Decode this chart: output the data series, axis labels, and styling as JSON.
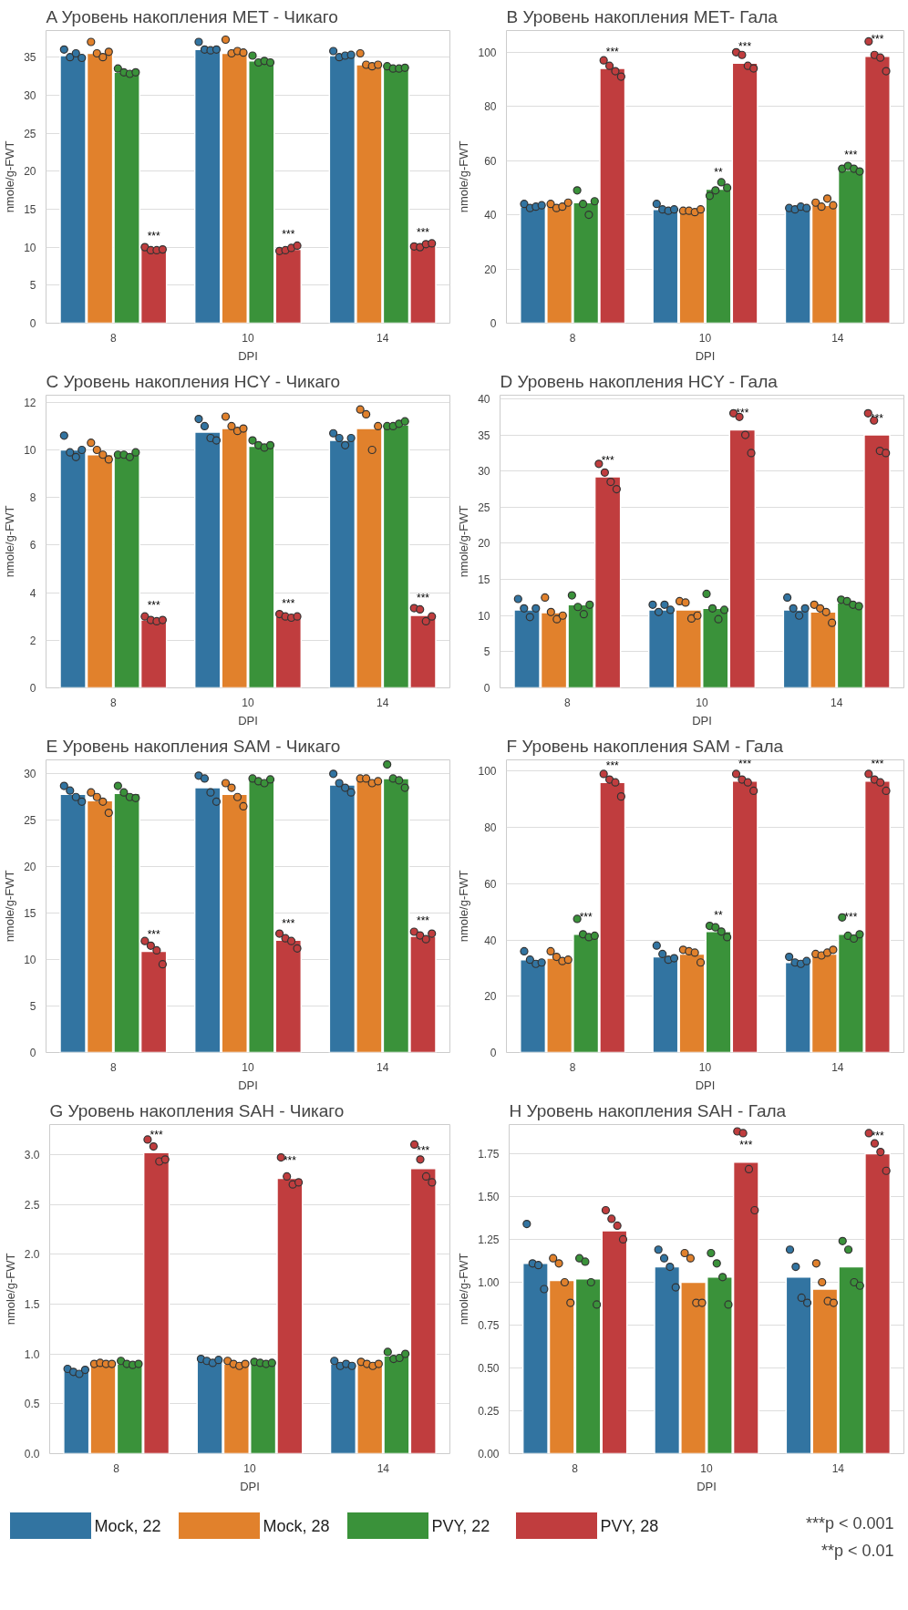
{
  "chart_data": [
    {
      "type": "bar",
      "title": "A Уровень накопления MET - Чикаго",
      "xlabel": "DPI",
      "ylabel": "nmole/g-FWT",
      "categories": [
        "8",
        "10",
        "14"
      ],
      "ylim": [
        0,
        38.5
      ],
      "yticks": [
        0,
        5,
        10,
        15,
        20,
        25,
        30,
        35
      ],
      "grid": "y",
      "marker": "circle",
      "series": [
        {
          "color": "#3274a1",
          "values": [
            35.2,
            36.0,
            35.2
          ]
        },
        {
          "color": "#e1812c",
          "values": [
            35.5,
            35.5,
            34.0
          ]
        },
        {
          "color": "#3a923a",
          "values": [
            33.0,
            34.5,
            33.6
          ]
        },
        {
          "color": "#c03d3e",
          "values": [
            9.8,
            9.7,
            10.3
          ],
          "value_labels": [
            "***",
            "***",
            "***"
          ]
        },
        {
          "type": "scatter",
          "color": "#3274a1",
          "x": [
            "8",
            "8",
            "8",
            "8",
            "10",
            "10",
            "10",
            "10",
            "14",
            "14",
            "14",
            "14"
          ],
          "values": [
            36.0,
            35.0,
            35.5,
            34.9,
            37.0,
            36.0,
            35.9,
            36.0,
            35.8,
            35.0,
            35.2,
            35.3
          ]
        },
        {
          "type": "scatter",
          "color": "#e1812c",
          "x": [
            "8",
            "8",
            "8",
            "8",
            "10",
            "10",
            "10",
            "10",
            "14",
            "14",
            "14",
            "14"
          ],
          "values": [
            37.0,
            35.5,
            35.0,
            35.7,
            37.3,
            35.5,
            35.8,
            35.6,
            35.5,
            34.0,
            33.8,
            34.0
          ]
        },
        {
          "type": "scatter",
          "color": "#3a923a",
          "x": [
            "8",
            "8",
            "8",
            "8",
            "10",
            "10",
            "10",
            "10",
            "14",
            "14",
            "14",
            "14"
          ],
          "values": [
            33.5,
            33.0,
            32.8,
            33.0,
            35.2,
            34.3,
            34.5,
            34.3,
            33.8,
            33.5,
            33.5,
            33.6
          ]
        },
        {
          "type": "scatter",
          "color": "#c03d3e",
          "x": [
            "8",
            "8",
            "8",
            "8",
            "10",
            "10",
            "10",
            "10",
            "14",
            "14",
            "14",
            "14"
          ],
          "values": [
            10.0,
            9.6,
            9.6,
            9.7,
            9.5,
            9.6,
            9.9,
            10.2,
            10.1,
            10.0,
            10.4,
            10.5
          ]
        }
      ]
    },
    {
      "type": "bar",
      "title": "B Уровень накопления MET- Гала",
      "xlabel": "DPI",
      "ylabel": "nmole/g-FWT",
      "categories": [
        "8",
        "10",
        "14"
      ],
      "ylim": [
        0,
        108
      ],
      "yticks": [
        0,
        20,
        40,
        60,
        80,
        100
      ],
      "grid": "y",
      "marker": "circle",
      "series": [
        {
          "color": "#3274a1",
          "values": [
            43,
            42,
            42.5
          ]
        },
        {
          "color": "#e1812c",
          "values": [
            43.5,
            41.5,
            43.5
          ]
        },
        {
          "color": "#3a923a",
          "values": [
            44.5,
            49.5,
            56.5
          ],
          "value_labels": [
            null,
            "**",
            "***"
          ]
        },
        {
          "color": "#c03d3e",
          "values": [
            94,
            96,
            98.5
          ],
          "value_labels": [
            "***",
            "***",
            "***"
          ]
        },
        {
          "type": "scatter",
          "color": "#3274a1",
          "x": [
            "8",
            "8",
            "8",
            "8",
            "10",
            "10",
            "10",
            "10",
            "14",
            "14",
            "14",
            "14"
          ],
          "values": [
            44,
            42.5,
            43,
            43.5,
            44,
            42,
            41.5,
            42,
            42.5,
            42,
            43,
            42.5
          ]
        },
        {
          "type": "scatter",
          "color": "#e1812c",
          "x": [
            "8",
            "8",
            "8",
            "8",
            "10",
            "10",
            "10",
            "10",
            "14",
            "14",
            "14",
            "14"
          ],
          "values": [
            44,
            42.5,
            43,
            44.5,
            41.5,
            41.5,
            41,
            42,
            44.5,
            43,
            46,
            43.5
          ]
        },
        {
          "type": "scatter",
          "color": "#3a923a",
          "x": [
            "8",
            "8",
            "8",
            "8",
            "10",
            "10",
            "10",
            "10",
            "14",
            "14",
            "14",
            "14"
          ],
          "values": [
            49,
            44,
            40,
            45,
            47,
            49,
            52,
            50,
            57,
            58,
            57,
            56
          ]
        },
        {
          "type": "scatter",
          "color": "#c03d3e",
          "x": [
            "8",
            "8",
            "8",
            "8",
            "10",
            "10",
            "10",
            "10",
            "14",
            "14",
            "14",
            "14"
          ],
          "values": [
            97,
            95,
            93,
            91,
            100,
            99,
            95,
            94,
            104,
            99,
            98,
            93
          ]
        }
      ]
    },
    {
      "type": "bar",
      "title": "C Уровень накопления HCY - Чикаго",
      "xlabel": "DPI",
      "ylabel": "nmole/g-FWT",
      "categories": [
        "8",
        "10",
        "14"
      ],
      "ylim": [
        0,
        12.3
      ],
      "yticks": [
        0,
        2,
        4,
        6,
        8,
        10,
        12
      ],
      "grid": "y",
      "marker": "circle",
      "series": [
        {
          "color": "#3274a1",
          "values": [
            10.0,
            10.75,
            10.4
          ]
        },
        {
          "color": "#e1812c",
          "values": [
            9.8,
            10.9,
            10.9
          ]
        },
        {
          "color": "#3a923a",
          "values": [
            9.8,
            10.15,
            11.05
          ]
        },
        {
          "color": "#c03d3e",
          "values": [
            2.85,
            3.0,
            3.05
          ],
          "value_labels": [
            "***",
            "***",
            "***"
          ]
        },
        {
          "type": "scatter",
          "color": "#3274a1",
          "x": [
            "8",
            "8",
            "8",
            "8",
            "10",
            "10",
            "10",
            "10",
            "14",
            "14",
            "14",
            "14"
          ],
          "values": [
            10.6,
            9.9,
            9.7,
            10.0,
            11.3,
            11.0,
            10.5,
            10.4,
            10.7,
            10.5,
            10.2,
            10.5
          ]
        },
        {
          "type": "scatter",
          "color": "#e1812c",
          "x": [
            "8",
            "8",
            "8",
            "8",
            "10",
            "10",
            "10",
            "10",
            "14",
            "14",
            "14",
            "14"
          ],
          "values": [
            10.3,
            10.0,
            9.8,
            9.6,
            11.4,
            11.0,
            10.8,
            10.9,
            11.7,
            11.5,
            10.0,
            11.0
          ]
        },
        {
          "type": "scatter",
          "color": "#3a923a",
          "x": [
            "8",
            "8",
            "8",
            "8",
            "10",
            "10",
            "10",
            "10",
            "14",
            "14",
            "14",
            "14"
          ],
          "values": [
            9.8,
            9.8,
            9.7,
            9.9,
            10.4,
            10.2,
            10.1,
            10.2,
            11.0,
            11.0,
            11.1,
            11.2
          ]
        },
        {
          "type": "scatter",
          "color": "#c03d3e",
          "x": [
            "8",
            "8",
            "8",
            "8",
            "10",
            "10",
            "10",
            "10",
            "14",
            "14",
            "14",
            "14"
          ],
          "values": [
            3.0,
            2.85,
            2.8,
            2.85,
            3.1,
            3.0,
            2.95,
            3.0,
            3.35,
            3.3,
            2.8,
            3.0
          ]
        }
      ]
    },
    {
      "type": "bar",
      "title": "D Уровень накопления HCY - Гала",
      "xlabel": "DPI",
      "ylabel": "nmole/g-FWT",
      "categories": [
        "8",
        "10",
        "14"
      ],
      "ylim": [
        0,
        40.5
      ],
      "yticks": [
        0,
        5,
        10,
        15,
        20,
        25,
        30,
        35,
        40
      ],
      "grid": "y",
      "marker": "circle",
      "series": [
        {
          "color": "#3274a1",
          "values": [
            10.8,
            10.8,
            10.8
          ]
        },
        {
          "color": "#e1812c",
          "values": [
            10.4,
            10.8,
            10.5
          ]
        },
        {
          "color": "#3a923a",
          "values": [
            11.5,
            11.0,
            11.8
          ]
        },
        {
          "color": "#c03d3e",
          "values": [
            29.2,
            35.7,
            35.0
          ],
          "value_labels": [
            "***",
            "***",
            "***"
          ]
        },
        {
          "type": "scatter",
          "color": "#3274a1",
          "x": [
            "8",
            "8",
            "8",
            "8",
            "10",
            "10",
            "10",
            "10",
            "14",
            "14",
            "14",
            "14"
          ],
          "values": [
            12.3,
            11.0,
            9.8,
            11.0,
            11.5,
            10.5,
            11.5,
            10.8,
            12.5,
            11.0,
            10.0,
            11.0
          ]
        },
        {
          "type": "scatter",
          "color": "#e1812c",
          "x": [
            "8",
            "8",
            "8",
            "8",
            "10",
            "10",
            "10",
            "10",
            "14",
            "14",
            "14",
            "14"
          ],
          "values": [
            12.5,
            10.5,
            9.5,
            10.0,
            12.0,
            11.8,
            9.6,
            10.0,
            11.5,
            11.0,
            10.5,
            9.0
          ]
        },
        {
          "type": "scatter",
          "color": "#3a923a",
          "x": [
            "8",
            "8",
            "8",
            "8",
            "10",
            "10",
            "10",
            "10",
            "14",
            "14",
            "14",
            "14"
          ],
          "values": [
            12.8,
            11.2,
            10.2,
            11.5,
            13.0,
            11.0,
            9.5,
            10.8,
            12.2,
            12.0,
            11.5,
            11.3
          ]
        },
        {
          "type": "scatter",
          "color": "#c03d3e",
          "x": [
            "8",
            "8",
            "8",
            "8",
            "10",
            "10",
            "10",
            "10",
            "14",
            "14",
            "14",
            "14"
          ],
          "values": [
            31,
            29.8,
            28.5,
            27.5,
            38,
            37.5,
            35,
            32.5,
            38,
            37,
            32.8,
            32.5
          ]
        }
      ]
    },
    {
      "type": "bar",
      "title": "E Уровень накопления SAM - Чикаго",
      "xlabel": "DPI",
      "ylabel": "nmole/g-FWT",
      "categories": [
        "8",
        "10",
        "14"
      ],
      "ylim": [
        0,
        31.5
      ],
      "yticks": [
        0,
        5,
        10,
        15,
        20,
        25,
        30
      ],
      "grid": "y",
      "marker": "circle",
      "series": [
        {
          "color": "#3274a1",
          "values": [
            27.8,
            28.5,
            28.8
          ]
        },
        {
          "color": "#e1812c",
          "values": [
            27.1,
            27.8,
            29.3
          ]
        },
        {
          "color": "#3a923a",
          "values": [
            27.9,
            29.3,
            29.5
          ]
        },
        {
          "color": "#c03d3e",
          "values": [
            10.9,
            12.1,
            12.5
          ],
          "value_labels": [
            "***",
            "***",
            "***"
          ]
        },
        {
          "type": "scatter",
          "color": "#3274a1",
          "x": [
            "8",
            "8",
            "8",
            "8",
            "10",
            "10",
            "10",
            "10",
            "14",
            "14",
            "14",
            "14"
          ],
          "values": [
            28.7,
            28.2,
            27.5,
            27.0,
            29.8,
            29.5,
            28.0,
            27.0,
            30.0,
            29.0,
            28.5,
            28.0
          ]
        },
        {
          "type": "scatter",
          "color": "#e1812c",
          "x": [
            "8",
            "8",
            "8",
            "8",
            "10",
            "10",
            "10",
            "10",
            "14",
            "14",
            "14",
            "14"
          ],
          "values": [
            28.0,
            27.5,
            27.0,
            25.8,
            29.0,
            28.5,
            27.5,
            26.5,
            29.5,
            29.5,
            29.0,
            29.2
          ]
        },
        {
          "type": "scatter",
          "color": "#3a923a",
          "x": [
            "8",
            "8",
            "8",
            "8",
            "10",
            "10",
            "10",
            "10",
            "14",
            "14",
            "14",
            "14"
          ],
          "values": [
            28.7,
            28.0,
            27.5,
            27.4,
            29.5,
            29.2,
            29.0,
            29.4,
            31.0,
            29.5,
            29.3,
            28.5
          ]
        },
        {
          "type": "scatter",
          "color": "#c03d3e",
          "x": [
            "8",
            "8",
            "8",
            "8",
            "10",
            "10",
            "10",
            "10",
            "14",
            "14",
            "14",
            "14"
          ],
          "values": [
            12.0,
            11.5,
            11.0,
            9.5,
            12.8,
            12.3,
            12.0,
            11.2,
            13.0,
            12.6,
            12.2,
            12.8
          ]
        }
      ]
    },
    {
      "type": "bar",
      "title": "F Уровень накопления SAM - Гала",
      "xlabel": "DPI",
      "ylabel": "nmole/g-FWT",
      "categories": [
        "8",
        "10",
        "14"
      ],
      "ylim": [
        0,
        104
      ],
      "yticks": [
        0,
        20,
        40,
        60,
        80,
        100
      ],
      "grid": "y",
      "marker": "circle",
      "series": [
        {
          "color": "#3274a1",
          "values": [
            33,
            34,
            32
          ]
        },
        {
          "color": "#e1812c",
          "values": [
            33.5,
            35,
            35
          ]
        },
        {
          "color": "#3a923a",
          "values": [
            42,
            43,
            42
          ],
          "value_labels": [
            "***",
            "**",
            "***"
          ]
        },
        {
          "color": "#c03d3e",
          "values": [
            96,
            96.5,
            96.5
          ],
          "value_labels": [
            "***",
            "***",
            "***"
          ]
        },
        {
          "type": "scatter",
          "color": "#3274a1",
          "x": [
            "8",
            "8",
            "8",
            "8",
            "10",
            "10",
            "10",
            "10",
            "14",
            "14",
            "14",
            "14"
          ],
          "values": [
            36,
            33,
            31.5,
            32,
            38,
            35,
            33,
            33.5,
            34,
            32,
            31.5,
            32.5
          ]
        },
        {
          "type": "scatter",
          "color": "#e1812c",
          "x": [
            "8",
            "8",
            "8",
            "8",
            "10",
            "10",
            "10",
            "10",
            "14",
            "14",
            "14",
            "14"
          ],
          "values": [
            36,
            34,
            32.5,
            33,
            36.5,
            36,
            35.5,
            32,
            35,
            34.5,
            35.5,
            36.5
          ]
        },
        {
          "type": "scatter",
          "color": "#3a923a",
          "x": [
            "8",
            "8",
            "8",
            "8",
            "10",
            "10",
            "10",
            "10",
            "14",
            "14",
            "14",
            "14"
          ],
          "values": [
            47.5,
            42,
            41,
            41.5,
            45,
            44.5,
            43,
            41,
            48,
            41.5,
            40.5,
            42
          ]
        },
        {
          "type": "scatter",
          "color": "#c03d3e",
          "x": [
            "8",
            "8",
            "8",
            "8",
            "10",
            "10",
            "10",
            "10",
            "14",
            "14",
            "14",
            "14"
          ],
          "values": [
            99,
            97,
            96,
            91,
            99,
            97,
            96,
            93,
            99,
            97,
            96,
            93
          ]
        }
      ]
    },
    {
      "type": "bar",
      "title": "G Уровень накопления SAH - Чикаго",
      "xlabel": "DPI",
      "ylabel": "nmole/g-FWT",
      "categories": [
        "8",
        "10",
        "14"
      ],
      "ylim": [
        0,
        3.3
      ],
      "yticks": [
        {
          "value": 0,
          "label": "0.0"
        },
        {
          "value": 0.5,
          "label": "0.5"
        },
        {
          "value": 1,
          "label": "1.0"
        },
        {
          "value": 1.5,
          "label": "1.5"
        },
        {
          "value": 2,
          "label": "2.0"
        },
        {
          "value": 2.5,
          "label": "2.5"
        },
        {
          "value": 3,
          "label": "3.0"
        }
      ],
      "grid": "y",
      "marker": "circle",
      "legend": "bottom",
      "series": [
        {
          "name": "Mock, 22",
          "color": "#3274a1",
          "values": [
            0.83,
            0.93,
            0.9
          ]
        },
        {
          "name": "Mock, 28",
          "color": "#e1812c",
          "values": [
            0.9,
            0.9,
            0.9
          ]
        },
        {
          "name": "PVY, 22",
          "color": "#3a923a",
          "values": [
            0.9,
            0.91,
            0.98
          ]
        },
        {
          "name": "PVY, 28",
          "color": "#c03d3e",
          "values": [
            3.02,
            2.76,
            2.86
          ],
          "value_labels": [
            "***",
            "***",
            "***"
          ]
        },
        {
          "type": "scatter",
          "color": "#3274a1",
          "x": [
            "8",
            "8",
            "8",
            "8",
            "10",
            "10",
            "10",
            "10",
            "14",
            "14",
            "14",
            "14"
          ],
          "values": [
            0.85,
            0.82,
            0.8,
            0.84,
            0.95,
            0.93,
            0.91,
            0.94,
            0.93,
            0.88,
            0.9,
            0.88
          ]
        },
        {
          "type": "scatter",
          "color": "#e1812c",
          "x": [
            "8",
            "8",
            "8",
            "8",
            "10",
            "10",
            "10",
            "10",
            "14",
            "14",
            "14",
            "14"
          ],
          "values": [
            0.9,
            0.91,
            0.9,
            0.9,
            0.93,
            0.9,
            0.88,
            0.9,
            0.92,
            0.9,
            0.88,
            0.9
          ]
        },
        {
          "type": "scatter",
          "color": "#3a923a",
          "x": [
            "8",
            "8",
            "8",
            "8",
            "10",
            "10",
            "10",
            "10",
            "14",
            "14",
            "14",
            "14"
          ],
          "values": [
            0.93,
            0.9,
            0.89,
            0.9,
            0.92,
            0.91,
            0.9,
            0.91,
            1.02,
            0.95,
            0.96,
            1.0
          ]
        },
        {
          "type": "scatter",
          "color": "#c03d3e",
          "x": [
            "8",
            "8",
            "8",
            "8",
            "10",
            "10",
            "10",
            "10",
            "14",
            "14",
            "14",
            "14"
          ],
          "values": [
            3.15,
            3.08,
            2.93,
            2.95,
            2.97,
            2.78,
            2.7,
            2.72,
            3.1,
            2.95,
            2.78,
            2.72
          ]
        }
      ]
    },
    {
      "type": "bar",
      "title": "H Уровень накопления SAH - Гала",
      "xlabel": "DPI",
      "ylabel": "nmole/g-FWT",
      "categories": [
        "8",
        "10",
        "14"
      ],
      "ylim": [
        0,
        1.92
      ],
      "yticks": [
        {
          "value": 0,
          "label": "0.00"
        },
        {
          "value": 0.25,
          "label": "0.25"
        },
        {
          "value": 0.5,
          "label": "0.50"
        },
        {
          "value": 0.75,
          "label": "0.75"
        },
        {
          "value": 1,
          "label": "1.00"
        },
        {
          "value": 1.25,
          "label": "1.25"
        },
        {
          "value": 1.5,
          "label": "1.50"
        },
        {
          "value": 1.75,
          "label": "1.75"
        }
      ],
      "grid": "y",
      "marker": "circle",
      "series": [
        {
          "color": "#3274a1",
          "values": [
            1.11,
            1.09,
            1.03
          ]
        },
        {
          "color": "#e1812c",
          "values": [
            1.01,
            1.0,
            0.96
          ]
        },
        {
          "color": "#3a923a",
          "values": [
            1.02,
            1.03,
            1.09
          ]
        },
        {
          "color": "#c03d3e",
          "values": [
            1.3,
            1.7,
            1.75
          ],
          "value_labels": [
            null,
            "***",
            "***"
          ]
        },
        {
          "type": "scatter",
          "color": "#3274a1",
          "x": [
            "8",
            "8",
            "8",
            "8",
            "10",
            "10",
            "10",
            "10",
            "14",
            "14",
            "14",
            "14"
          ],
          "values": [
            1.34,
            1.11,
            1.1,
            0.96,
            1.19,
            1.14,
            1.09,
            0.97,
            1.19,
            1.09,
            0.91,
            0.88
          ]
        },
        {
          "type": "scatter",
          "color": "#e1812c",
          "x": [
            "8",
            "8",
            "8",
            "8",
            "10",
            "10",
            "10",
            "10",
            "14",
            "14",
            "14",
            "14"
          ],
          "values": [
            1.14,
            1.11,
            1.0,
            0.88,
            1.17,
            1.14,
            0.88,
            0.88,
            1.11,
            1.0,
            0.89,
            0.88
          ]
        },
        {
          "type": "scatter",
          "color": "#3a923a",
          "x": [
            "8",
            "8",
            "8",
            "8",
            "10",
            "10",
            "10",
            "10",
            "14",
            "14",
            "14",
            "14"
          ],
          "values": [
            1.14,
            1.12,
            1.0,
            0.87,
            1.17,
            1.11,
            1.03,
            0.87,
            1.24,
            1.19,
            1.0,
            0.98
          ]
        },
        {
          "type": "scatter",
          "color": "#c03d3e",
          "x": [
            "8",
            "8",
            "8",
            "8",
            "10",
            "10",
            "10",
            "10",
            "14",
            "14",
            "14",
            "14"
          ],
          "values": [
            1.42,
            1.37,
            1.33,
            1.25,
            1.88,
            1.87,
            1.66,
            1.42,
            1.87,
            1.81,
            1.76,
            1.65
          ]
        }
      ],
      "annotations": [
        "***p < 0.001",
        "**p < 0.01"
      ]
    }
  ]
}
